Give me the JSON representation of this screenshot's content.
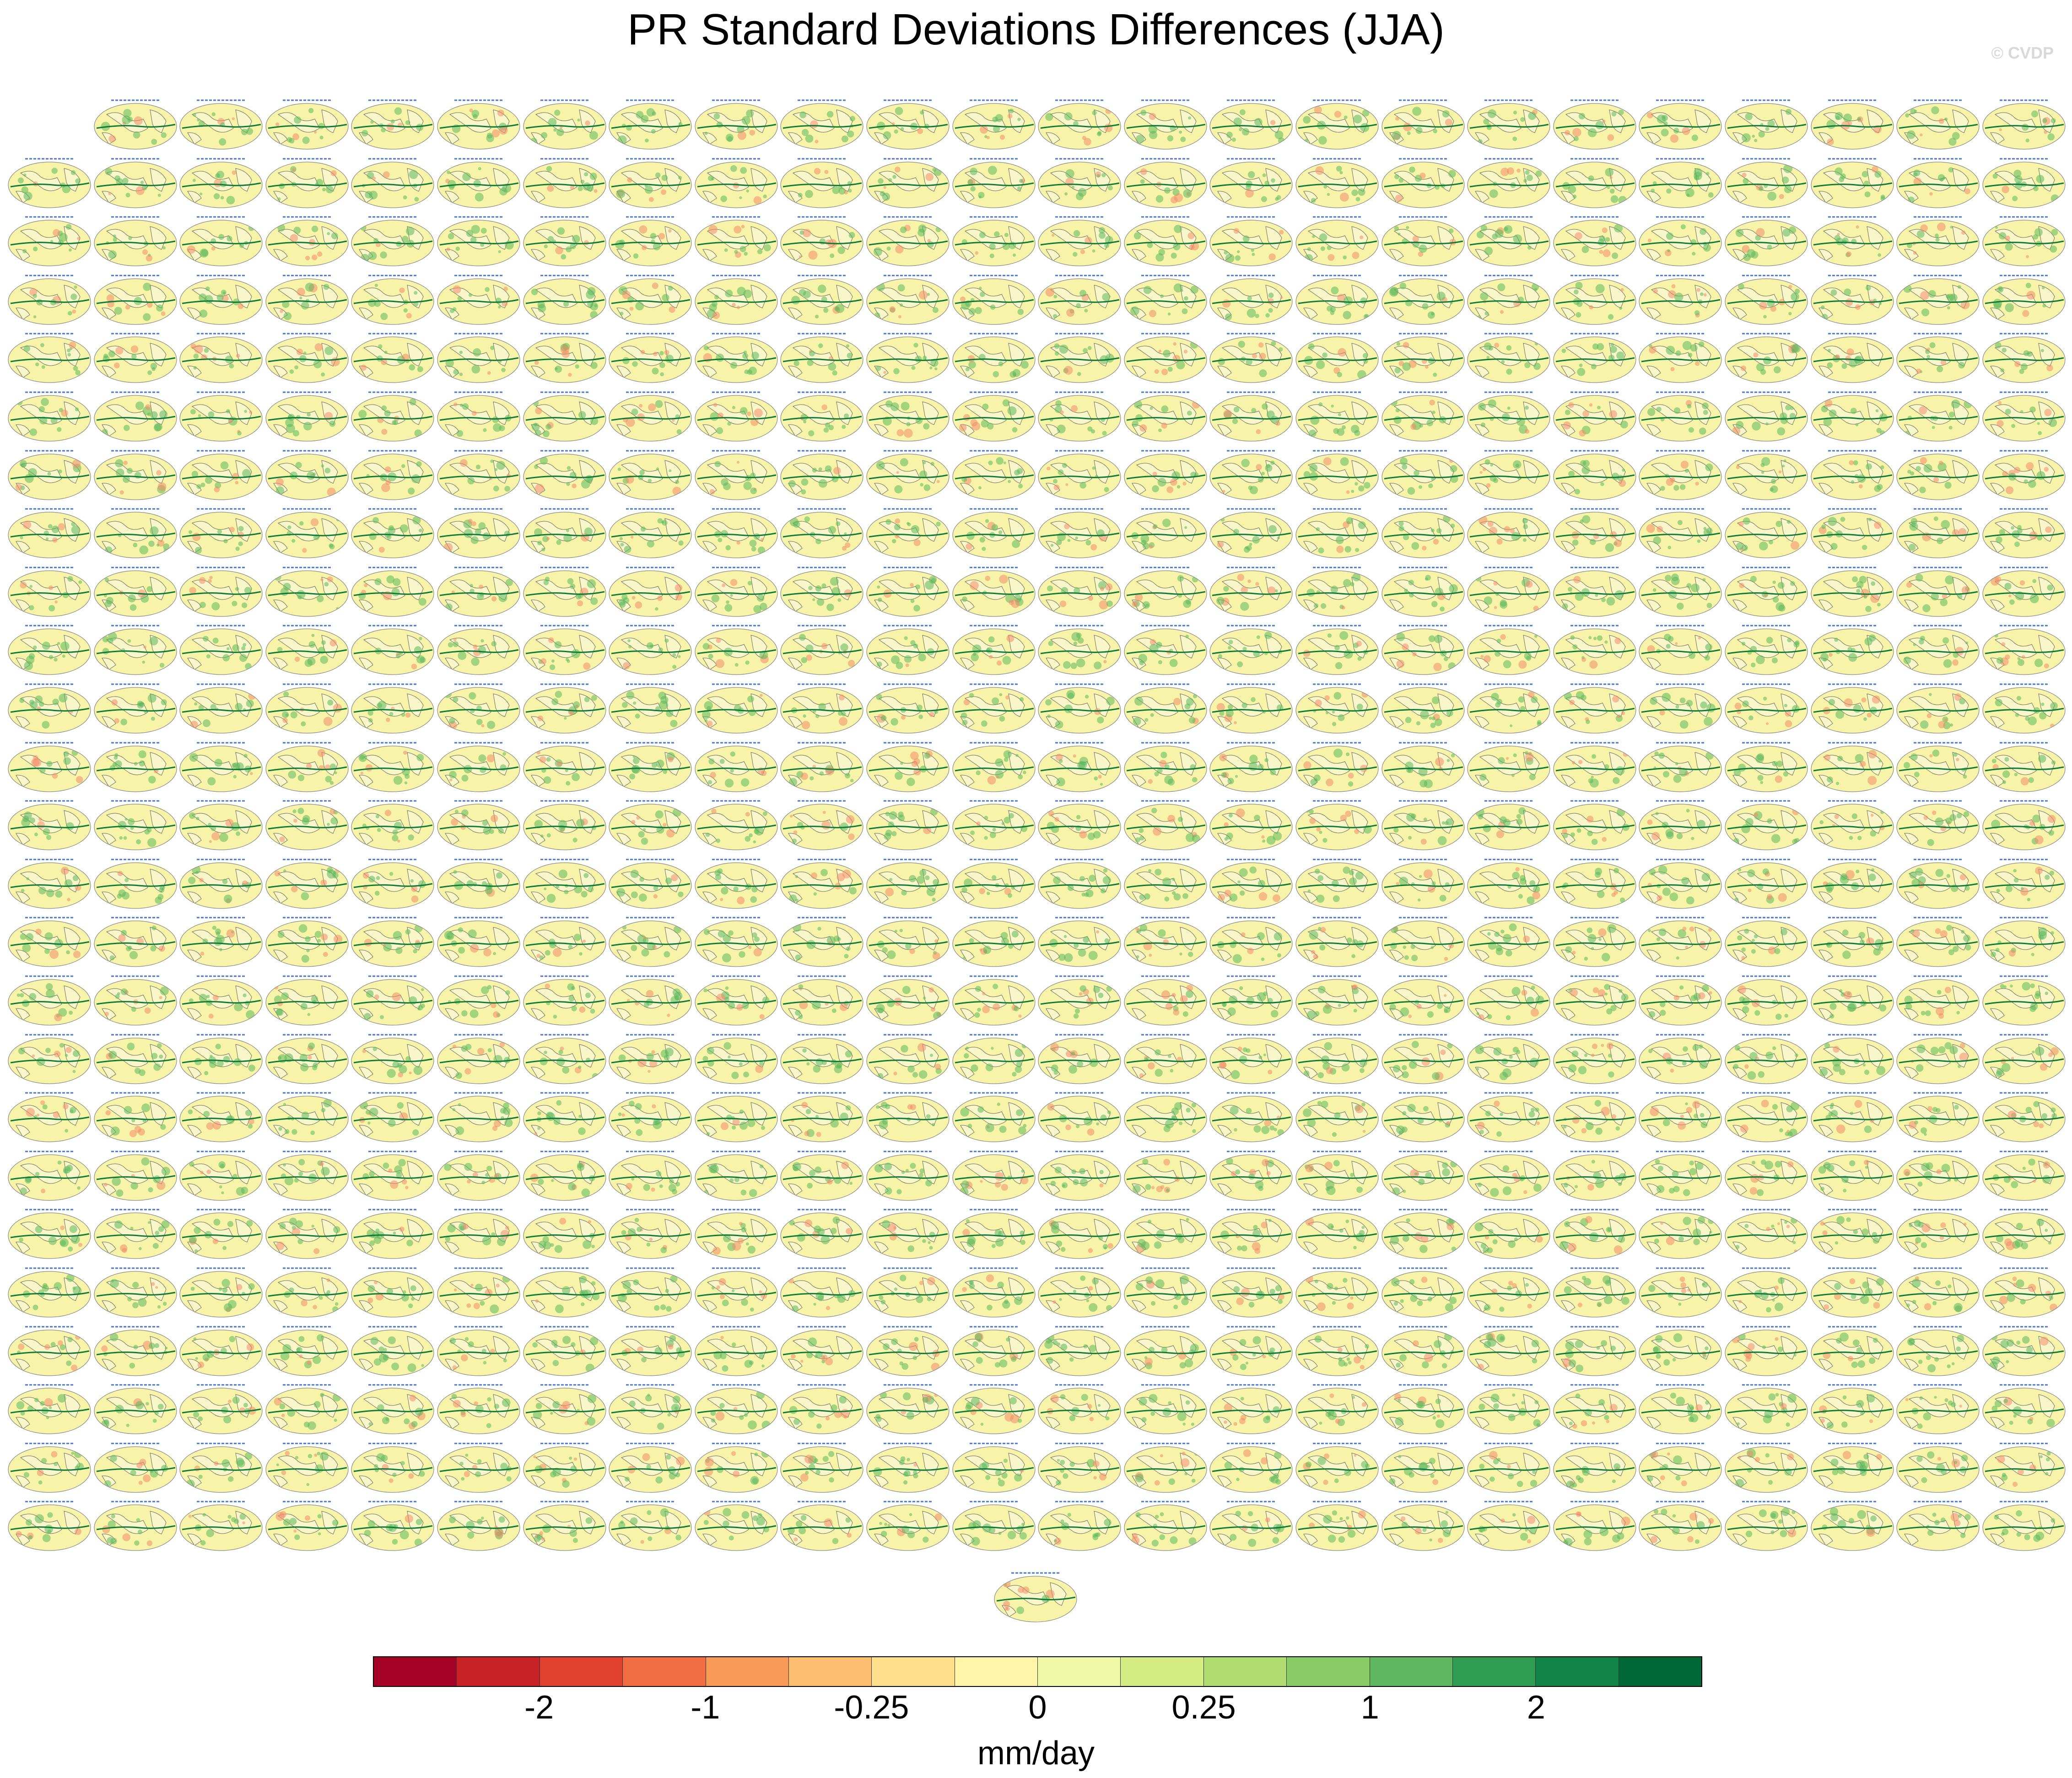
{
  "figure": {
    "title": "PR Standard Deviations Differences (JJA)",
    "watermark": "© CVDP",
    "units": "mm/day",
    "panel_grid": {
      "rows": 25,
      "columns": 24,
      "first_row_blank_columns": [
        0
      ],
      "extra_bottom_panel": true
    },
    "panel_colors": {
      "ocean_base": "#f7f3a8",
      "land_mask": "#f9f6c9",
      "coast": "#6b6b5a",
      "positive": "#5cb85c",
      "strong_positive": "#0f7a3a",
      "negative": "#f28c6a",
      "title_text": "#4a78c8"
    }
  },
  "chart_data": {
    "type": "heatmap",
    "colorbar": {
      "colors": [
        "#a50026",
        "#c82227",
        "#e0422f",
        "#f16e43",
        "#f89b56",
        "#fcbf6f",
        "#fddf8b",
        "#fef5a9",
        "#eff8a6",
        "#d4ed83",
        "#b0dd6f",
        "#89cb67",
        "#5fb760",
        "#2f9e53",
        "#118546",
        "#006837"
      ],
      "tick_labels": [
        "-2",
        "-1",
        "-0.25",
        "0",
        "0.25",
        "1",
        "2"
      ],
      "tick_after_box": [
        2,
        4,
        6,
        8,
        10,
        12,
        14
      ]
    }
  }
}
